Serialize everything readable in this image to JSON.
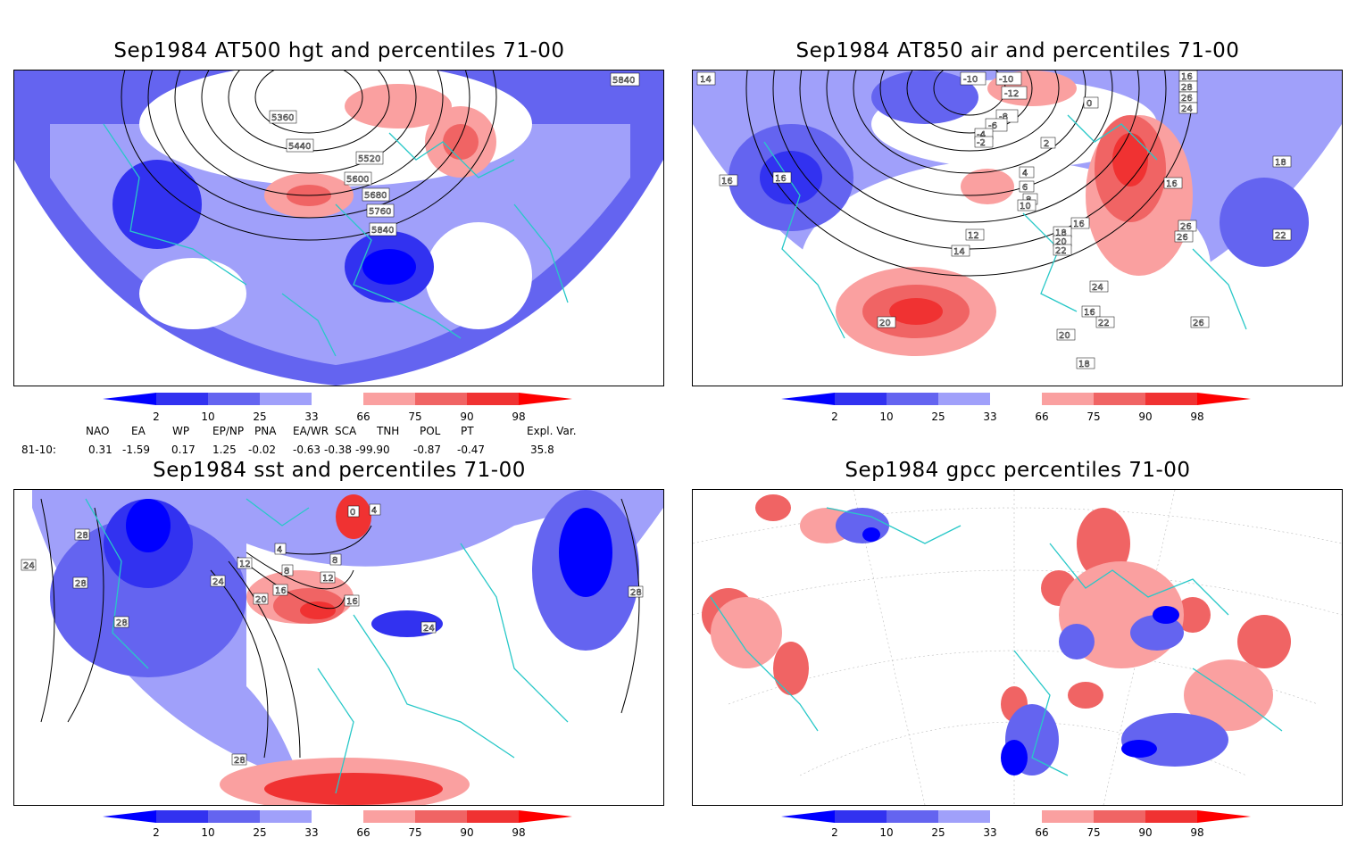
{
  "panels": [
    {
      "title": "Sep1984 AT500 hgt and percentiles 71-00",
      "contour_labels": [
        "5840",
        "5360",
        "5440",
        "5520",
        "5600",
        "5680",
        "5760",
        "5840"
      ]
    },
    {
      "title": "Sep1984 AT850 air and percentiles 71-00",
      "contour_labels": [
        "14",
        "-10",
        "-10",
        "-12",
        "-8",
        "-6",
        "-4",
        "-2",
        "0",
        "2",
        "4",
        "6",
        "8",
        "10",
        "12",
        "14",
        "16",
        "16",
        "16",
        "18",
        "20",
        "22",
        "24",
        "26",
        "26",
        "26",
        "18",
        "16",
        "22",
        "20",
        "20",
        "18",
        "16",
        "16",
        "28",
        "26",
        "24",
        "22",
        "20",
        "18"
      ]
    },
    {
      "title": "Sep1984 sst and percentiles 71-00",
      "contour_labels": [
        "28",
        "24",
        "28",
        "28",
        "24",
        "20",
        "16",
        "12",
        "8",
        "4",
        "0",
        "4",
        "8",
        "12",
        "16",
        "24",
        "28",
        "28"
      ]
    },
    {
      "title": "Sep1984 gpcc percentiles 71-00",
      "contour_labels": []
    }
  ],
  "colorbar": {
    "ticks": [
      "2",
      "10",
      "25",
      "33",
      "66",
      "75",
      "90",
      "98"
    ],
    "colors": [
      "#0000ff",
      "#3232f0",
      "#6464f0",
      "#a0a0fa",
      "#ffffff",
      "#faa0a0",
      "#f06464",
      "#f03232",
      "#ff0000"
    ]
  },
  "indices": {
    "headers": [
      "NAO",
      "EA",
      "WP",
      "EP/NP",
      "PNA",
      "EA/WR",
      "SCA",
      "TNH",
      "POL",
      "PT",
      "Expl. Var."
    ],
    "row_label": "81-10:",
    "values": [
      "0.31",
      "-1.59",
      "0.17",
      "1.25",
      "-0.02",
      "-0.63",
      "-0.38",
      "-99.90",
      "-0.87",
      "-0.47",
      "35.8"
    ]
  },
  "colors": {
    "coast": "#28c8c8",
    "blue_dark": "#0000ff",
    "blue_mid": "#3232f0",
    "blue_light": "#6464f0",
    "blue_pale": "#a0a0fa",
    "red_pale": "#faa0a0",
    "red_mid": "#f06464",
    "red_dark": "#f03232",
    "red_max": "#ff0000"
  }
}
